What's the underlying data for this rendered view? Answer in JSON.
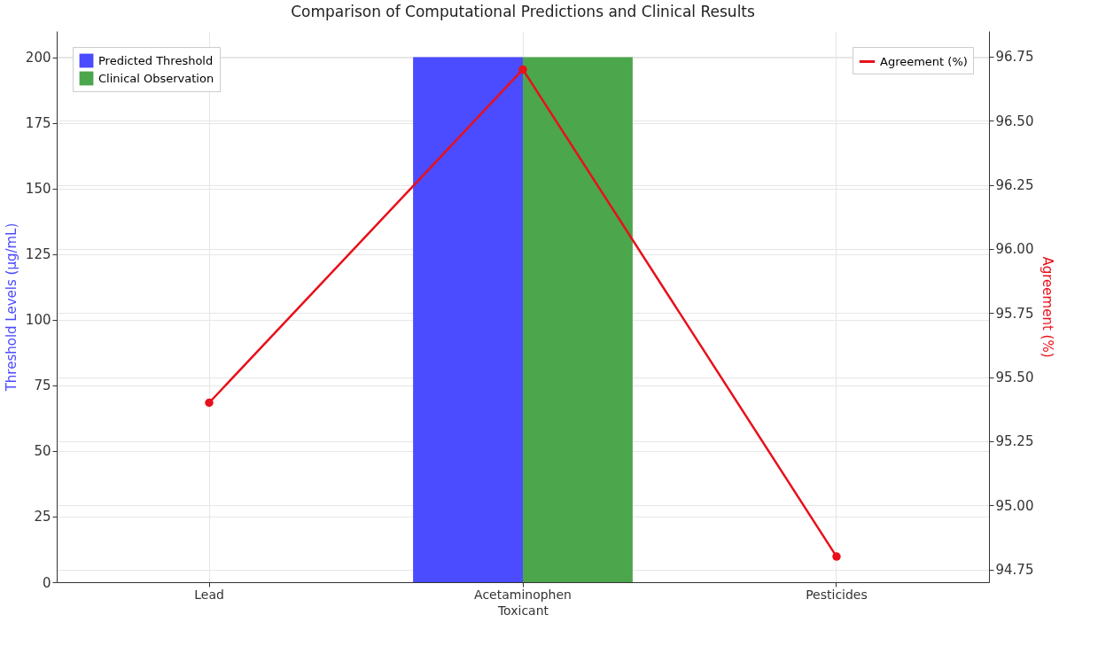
{
  "chart_data": {
    "type": "bar",
    "title": "Comparison of Computational Predictions and Clinical Results",
    "xlabel": "Toxicant",
    "ylabel": "Threshold Levels (µg/mL)",
    "y2label": "Agreement (%)",
    "categories": [
      "Lead",
      "Acetaminophen",
      "Pesticides"
    ],
    "series": [
      {
        "name": "Predicted Threshold",
        "color": "#4b4bff",
        "values": [
          0,
          200,
          0
        ]
      },
      {
        "name": "Clinical Observation",
        "color": "#4ca64c",
        "values": [
          0,
          200,
          0
        ]
      },
      {
        "name": "Agreement (%)",
        "type": "line",
        "axis": "y2",
        "color": "#e8101a",
        "values": [
          95.4,
          96.7,
          94.8
        ]
      }
    ],
    "ylim": [
      0,
      210
    ],
    "yticks": [
      0,
      25,
      50,
      75,
      100,
      125,
      150,
      175,
      200
    ],
    "y2lim": [
      94.7,
      96.85
    ],
    "y2ticks": [
      94.75,
      {
        "value": 95,
        "label": "95.00"
      },
      95.25,
      {
        "value": 95.5,
        "label": "95.50"
      },
      95.75,
      {
        "value": 96,
        "label": "96.00"
      },
      96.25,
      {
        "value": 96.5,
        "label": "96.50"
      },
      96.75
    ],
    "grid": true,
    "legend": "top left",
    "marker": "circle",
    "line_style": "solid"
  }
}
